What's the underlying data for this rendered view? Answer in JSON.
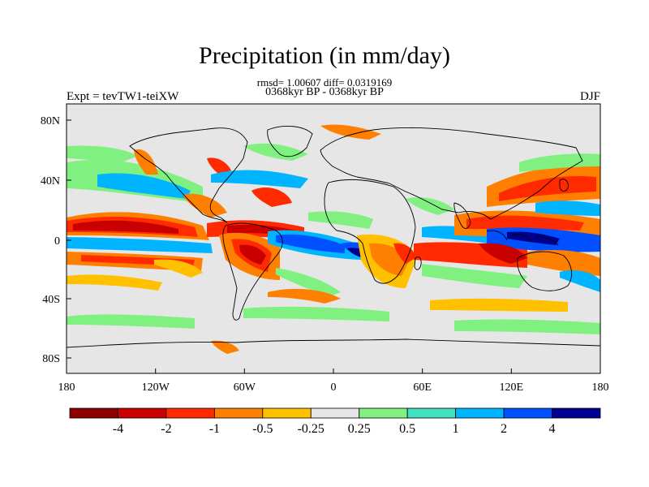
{
  "title": "Precipitation (in mm/day)",
  "stats_line": "rmsd= 1.00607 diff= 0.0319169",
  "period_line": "0368kyr BP - 0368kyr BP",
  "experiment": "Expt = tevTW1-teiXW",
  "season": "DJF",
  "y_ticks": [
    "80N",
    "40N",
    "0",
    "40S",
    "80S"
  ],
  "x_ticks": [
    "180",
    "120W",
    "60W",
    "0",
    "60E",
    "120E",
    "180"
  ],
  "colorbar": {
    "colors": [
      "#8c0000",
      "#c80000",
      "#ff2a00",
      "#ff7f00",
      "#ffc000",
      "#e6e6e6",
      "#80f080",
      "#40e0c0",
      "#00b4ff",
      "#0050ff",
      "#000090"
    ],
    "labels": [
      "-4",
      "-2",
      "-1",
      "-0.5",
      "-0.25",
      "0.25",
      "0.5",
      "1",
      "2",
      "4"
    ]
  },
  "map_background": "#e6e6e6"
}
